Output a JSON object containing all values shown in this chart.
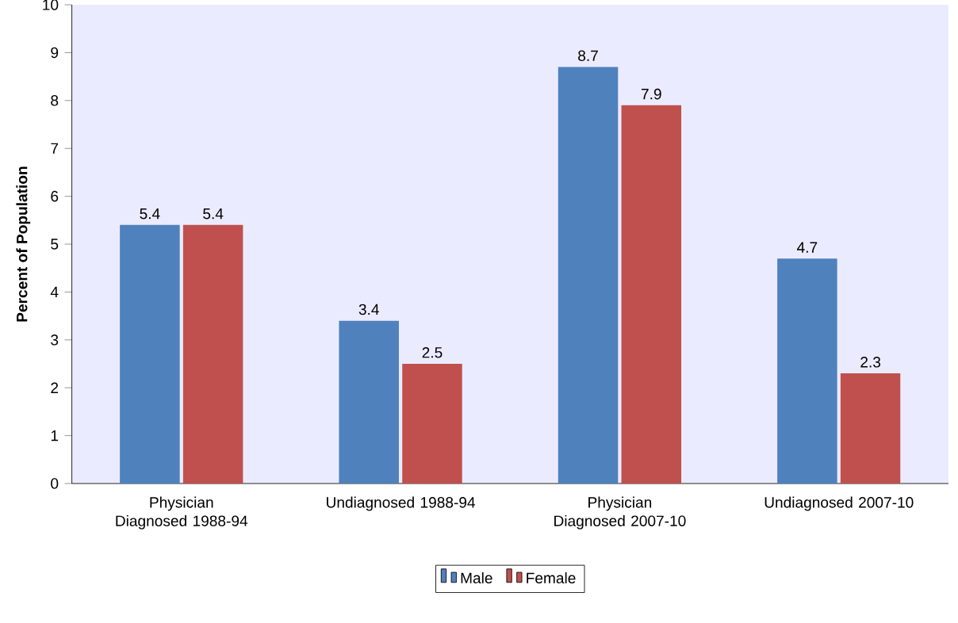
{
  "chart_data": {
    "type": "bar",
    "ylabel": "Percent of Population",
    "categories": [
      "Physician Diagnosed 1988-94",
      "Undiagnosed 1988-94",
      "Physician Diagnosed 2007-10",
      "Undiagnosed 2007-10"
    ],
    "series": [
      {
        "name": "Male",
        "color": "#4f81bd",
        "values": [
          5.4,
          3.4,
          8.7,
          4.7
        ]
      },
      {
        "name": "Female",
        "color": "#c0504d",
        "values": [
          5.4,
          2.5,
          7.9,
          2.3
        ]
      }
    ],
    "ylim": [
      0,
      10
    ],
    "yticks": [
      0,
      1,
      2,
      3,
      4,
      5,
      6,
      7,
      8,
      9,
      10
    ],
    "data_labels": true,
    "legend": "bottom"
  }
}
